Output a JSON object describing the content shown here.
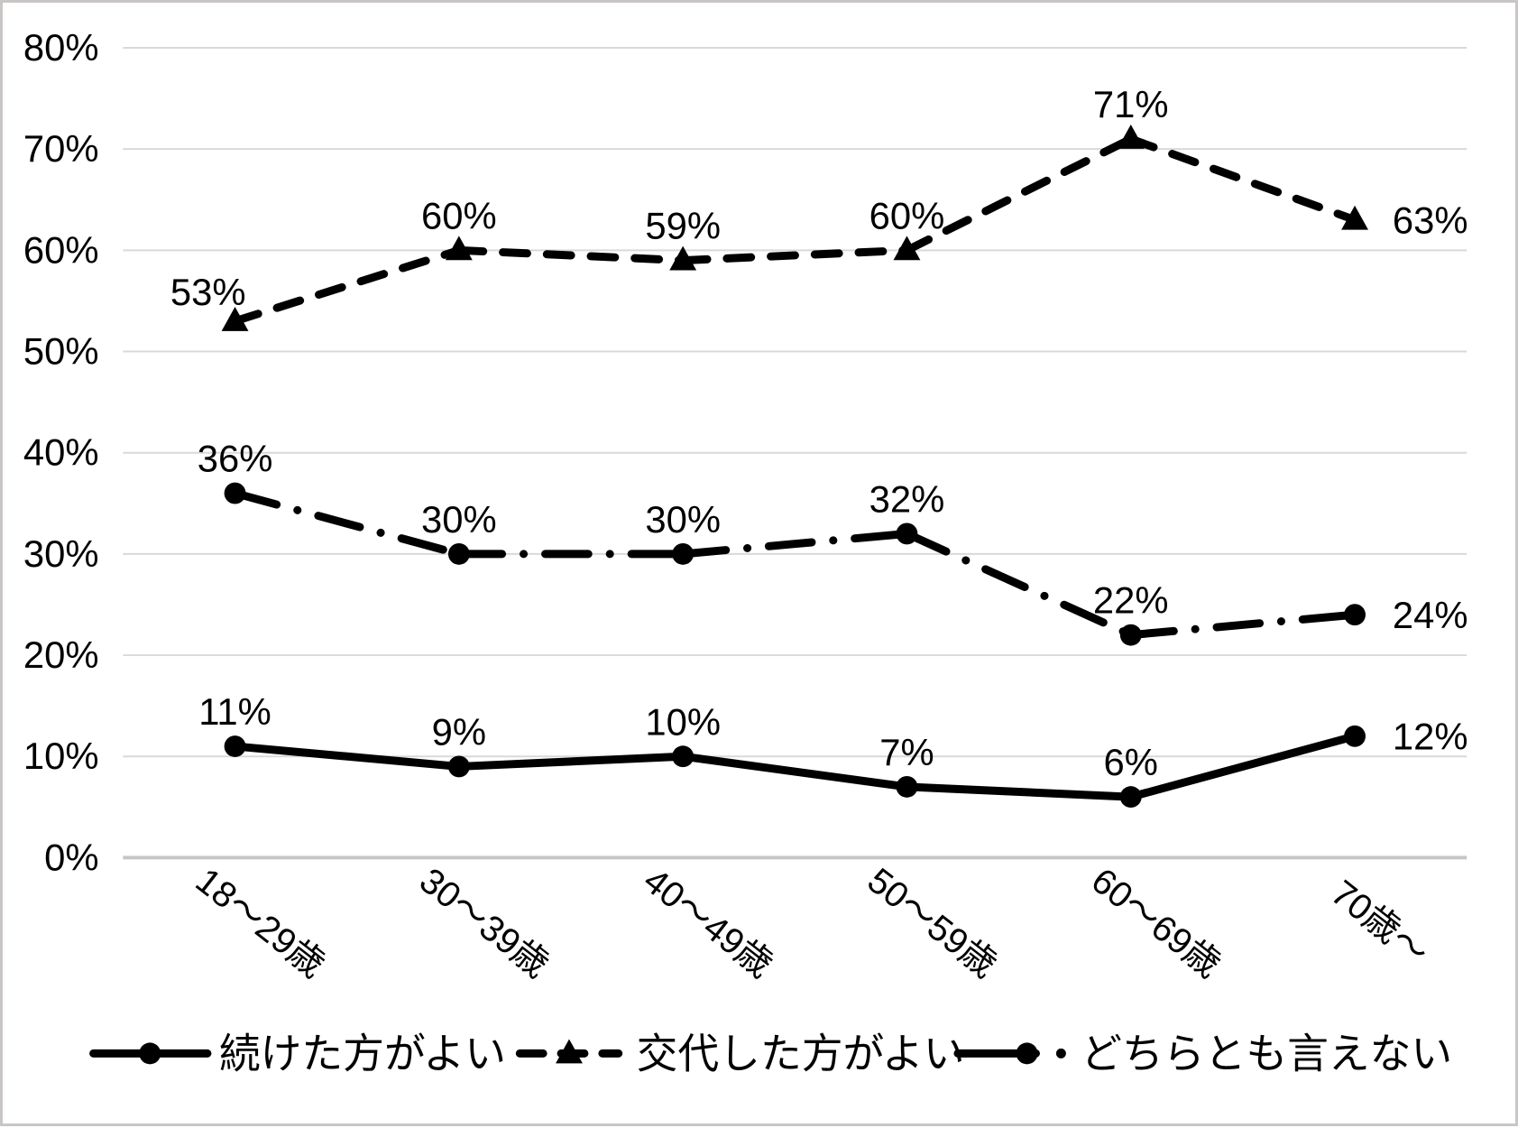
{
  "chart_data": {
    "type": "line",
    "title": "",
    "xlabel": "",
    "ylabel": "",
    "categories": [
      "18〜29歳",
      "30〜39歳",
      "40〜49歳",
      "50〜59歳",
      "60〜69歳",
      "70歳〜"
    ],
    "y_ticks": [
      {
        "value": 0,
        "label": "0%"
      },
      {
        "value": 10,
        "label": "10%"
      },
      {
        "value": 20,
        "label": "20%"
      },
      {
        "value": 30,
        "label": "30%"
      },
      {
        "value": 40,
        "label": "40%"
      },
      {
        "value": 50,
        "label": "50%"
      },
      {
        "value": 60,
        "label": "60%"
      },
      {
        "value": 70,
        "label": "70%"
      },
      {
        "value": 80,
        "label": "80%"
      }
    ],
    "ylim": [
      0,
      80
    ],
    "grid": "horizontal",
    "legend_position": "bottom",
    "series": [
      {
        "name": "続けた方がよい",
        "line_style": "solid",
        "marker": "circle",
        "values": [
          11,
          9,
          10,
          7,
          6,
          12
        ],
        "data_labels": [
          "11%",
          "9%",
          "10%",
          "7%",
          "6%",
          "12%"
        ],
        "label_positions": [
          "above",
          "above",
          "above",
          "above",
          "above",
          "right"
        ]
      },
      {
        "name": "交代した方がよい",
        "line_style": "dashed",
        "marker": "triangle",
        "values": [
          53,
          60,
          59,
          60,
          71,
          63
        ],
        "data_labels": [
          "53%",
          "60%",
          "59%",
          "60%",
          "71%",
          "63%"
        ],
        "label_positions": [
          "above-left",
          "above",
          "above",
          "above",
          "above",
          "right"
        ]
      },
      {
        "name": "どちらとも言えない",
        "line_style": "dashdot",
        "marker": "circle",
        "values": [
          36,
          30,
          30,
          32,
          22,
          24
        ],
        "data_labels": [
          "36%",
          "30%",
          "30%",
          "32%",
          "22%",
          "24%"
        ],
        "label_positions": [
          "above",
          "above",
          "above",
          "above",
          "above",
          "right"
        ]
      }
    ]
  },
  "style": {
    "ink_color": "#000000",
    "gridline_color": "#d9d9d9",
    "axis_line_color": "#c6c6c6",
    "border_color": "#c9c6c5",
    "background_color": "#ffffff"
  }
}
